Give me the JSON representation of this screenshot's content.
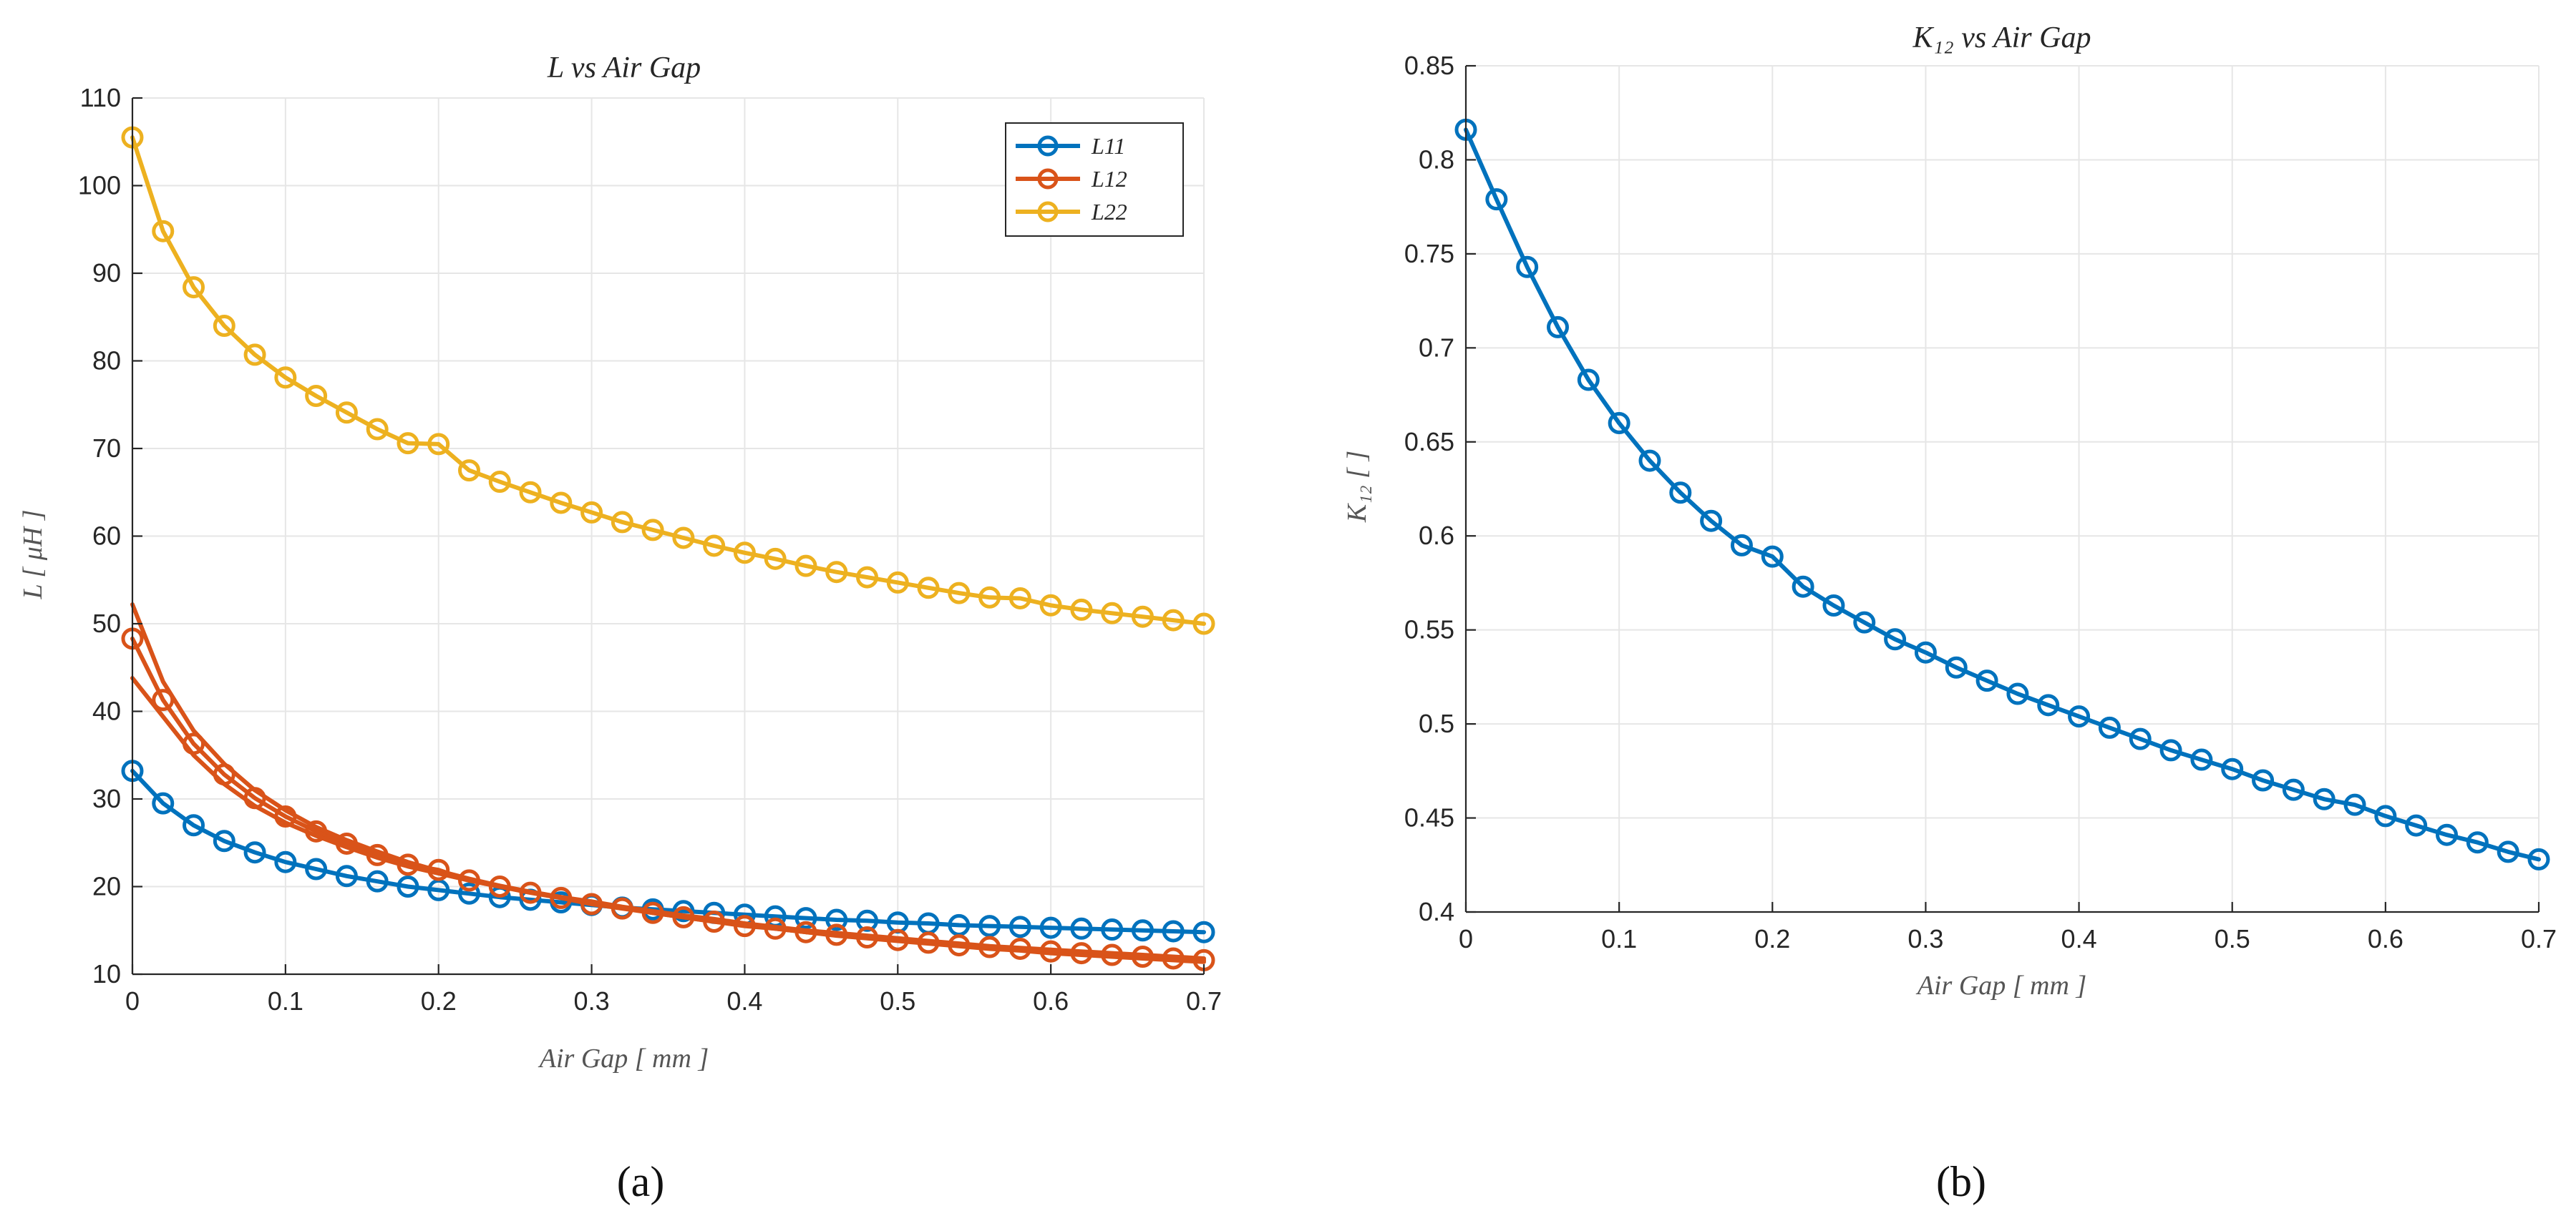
{
  "chart_data": [
    {
      "type": "line",
      "panel_label": "(a)",
      "title": "L vs Air Gap",
      "xlabel": "Air Gap [ mm ]",
      "ylabel": "L [ μH ]",
      "xlim": [
        0,
        0.7
      ],
      "ylim": [
        10,
        110
      ],
      "xticks": [
        0,
        0.1,
        0.2,
        0.3,
        0.4,
        0.5,
        0.6,
        0.7
      ],
      "xtick_labels": [
        "0",
        "0.1",
        "0.2",
        "0.3",
        "0.4",
        "0.5",
        "0.6",
        "0.7"
      ],
      "yticks": [
        10,
        20,
        30,
        40,
        50,
        60,
        70,
        80,
        90,
        100,
        110
      ],
      "ytick_labels": [
        "10",
        "20",
        "30",
        "40",
        "50",
        "60",
        "70",
        "80",
        "90",
        "100",
        "110"
      ],
      "grid": true,
      "legend_position": "top-right",
      "x": [
        0,
        0.02,
        0.04,
        0.06,
        0.08,
        0.1,
        0.12,
        0.14,
        0.16,
        0.18,
        0.2,
        0.22,
        0.24,
        0.26,
        0.28,
        0.3,
        0.32,
        0.34,
        0.36,
        0.38,
        0.4,
        0.42,
        0.44,
        0.46,
        0.48,
        0.5,
        0.52,
        0.54,
        0.56,
        0.58,
        0.6,
        0.62,
        0.64,
        0.66,
        0.68,
        0.7
      ],
      "series": [
        {
          "name": "L11",
          "color": "#0072BD",
          "show_markers": true,
          "in_legend": true,
          "values": [
            33.2,
            29.5,
            27.0,
            25.2,
            23.9,
            22.8,
            22.0,
            21.2,
            20.6,
            20.0,
            19.6,
            19.2,
            18.8,
            18.5,
            18.2,
            17.9,
            17.6,
            17.4,
            17.2,
            17.0,
            16.8,
            16.6,
            16.4,
            16.2,
            16.1,
            15.9,
            15.8,
            15.6,
            15.5,
            15.4,
            15.3,
            15.2,
            15.1,
            15.0,
            14.9,
            14.8
          ]
        },
        {
          "name": "L12",
          "color": "#D95319",
          "show_markers": true,
          "in_legend": true,
          "values": [
            48.3,
            41.3,
            36.3,
            32.8,
            30.1,
            28.0,
            26.3,
            24.9,
            23.6,
            22.5,
            21.9,
            20.7,
            20.0,
            19.3,
            18.7,
            18.0,
            17.5,
            17.0,
            16.5,
            16.0,
            15.5,
            15.2,
            14.8,
            14.5,
            14.2,
            13.9,
            13.6,
            13.3,
            13.1,
            12.9,
            12.6,
            12.4,
            12.2,
            12.0,
            11.8,
            11.6
          ]
        },
        {
          "name": "L12 (upper)",
          "color": "#D95319",
          "show_markers": false,
          "in_legend": false,
          "values": [
            52.2,
            43.4,
            37.8,
            34.0,
            31.0,
            28.7,
            26.8,
            25.3,
            24.0,
            22.8,
            21.8,
            20.9,
            20.1,
            19.4,
            18.8,
            18.2,
            17.6,
            17.0,
            16.5,
            16.0,
            15.6,
            15.2,
            14.8,
            14.4,
            14.1,
            13.8,
            13.5,
            13.2,
            12.9,
            12.7,
            12.4,
            12.2,
            12.0,
            11.8,
            11.6,
            11.4
          ]
        },
        {
          "name": "L12 (lower)",
          "color": "#D95319",
          "show_markers": false,
          "in_legend": false,
          "values": [
            43.8,
            39.4,
            35.0,
            31.7,
            29.2,
            27.3,
            25.8,
            24.5,
            23.3,
            22.3,
            21.5,
            20.7,
            20.0,
            19.4,
            18.8,
            18.3,
            17.7,
            17.2,
            16.7,
            16.3,
            15.8,
            15.4,
            15.0,
            14.7,
            14.4,
            14.1,
            13.8,
            13.5,
            13.2,
            13.0,
            12.8,
            12.6,
            12.4,
            12.2,
            12.0,
            11.8
          ]
        },
        {
          "name": "L22",
          "color": "#EDB120",
          "show_markers": true,
          "in_legend": true,
          "values": [
            105.5,
            94.8,
            88.4,
            84.0,
            80.7,
            78.1,
            76.0,
            74.1,
            72.2,
            70.6,
            70.5,
            67.5,
            66.2,
            65.0,
            63.8,
            62.7,
            61.6,
            60.7,
            59.8,
            58.9,
            58.1,
            57.4,
            56.6,
            55.9,
            55.3,
            54.7,
            54.1,
            53.5,
            53.0,
            52.9,
            52.1,
            51.6,
            51.2,
            50.8,
            50.4,
            50.0
          ]
        }
      ]
    },
    {
      "type": "line",
      "panel_label": "(b)",
      "title": "K₁₂ vs Air Gap",
      "xlabel": "Air Gap [ mm ]",
      "ylabel": "K₁₂ [ ]",
      "xlim": [
        0,
        0.7
      ],
      "ylim": [
        0.4,
        0.85
      ],
      "xticks": [
        0,
        0.1,
        0.2,
        0.3,
        0.4,
        0.5,
        0.6,
        0.7
      ],
      "xtick_labels": [
        "0",
        "0.1",
        "0.2",
        "0.3",
        "0.4",
        "0.5",
        "0.6",
        "0.7"
      ],
      "yticks": [
        0.4,
        0.45,
        0.5,
        0.55,
        0.6,
        0.65,
        0.7,
        0.75,
        0.8,
        0.85
      ],
      "ytick_labels": [
        "0.4",
        "0.45",
        "0.5",
        "0.55",
        "0.6",
        "0.65",
        "0.7",
        "0.75",
        "0.8",
        "0.85"
      ],
      "grid": true,
      "x": [
        0,
        0.02,
        0.04,
        0.06,
        0.08,
        0.1,
        0.12,
        0.14,
        0.16,
        0.18,
        0.2,
        0.22,
        0.24,
        0.26,
        0.28,
        0.3,
        0.32,
        0.34,
        0.36,
        0.38,
        0.4,
        0.42,
        0.44,
        0.46,
        0.48,
        0.5,
        0.52,
        0.54,
        0.56,
        0.58,
        0.6,
        0.62,
        0.64,
        0.66,
        0.68,
        0.7
      ],
      "series": [
        {
          "name": "K12",
          "color": "#0072BD",
          "show_markers": true,
          "in_legend": false,
          "values": [
            0.816,
            0.779,
            0.743,
            0.711,
            0.683,
            0.66,
            0.64,
            0.623,
            0.608,
            0.595,
            0.589,
            0.573,
            0.563,
            0.554,
            0.545,
            0.538,
            0.53,
            0.523,
            0.516,
            0.51,
            0.504,
            0.498,
            0.492,
            0.486,
            0.481,
            0.476,
            0.47,
            0.465,
            0.46,
            0.457,
            0.451,
            0.446,
            0.441,
            0.437,
            0.432,
            0.428
          ]
        }
      ]
    }
  ]
}
